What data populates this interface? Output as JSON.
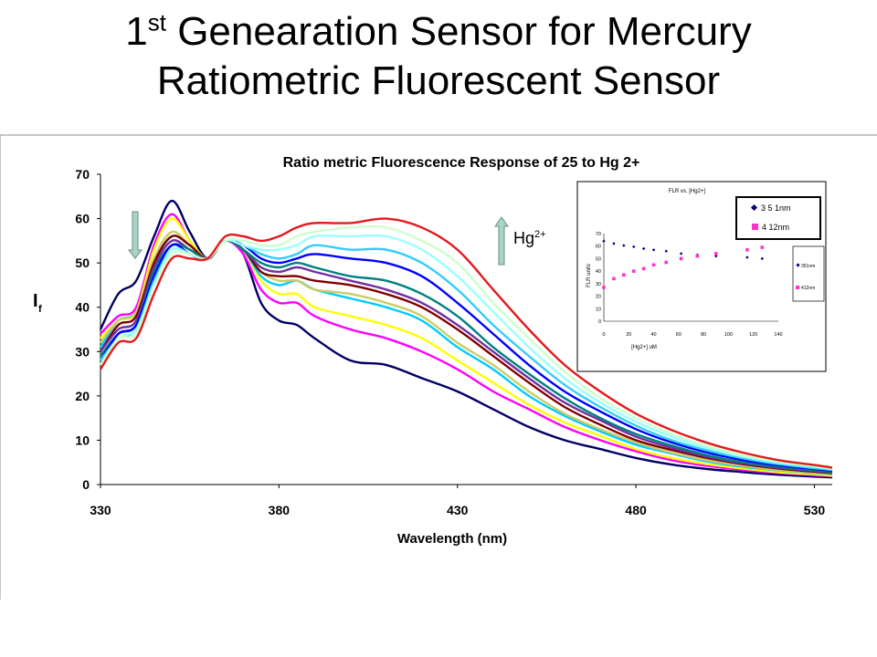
{
  "slide": {
    "title_prefix": "1",
    "title_sup": "st",
    "title_line1_rest": " Genearation Sensor for Mercury",
    "title_line2": "Ratiometric Fluorescent Sensor"
  },
  "arrows": {
    "hg_label": "Hg",
    "hg_charge": "2+",
    "color_fill": "#a7d7c4",
    "color_stroke": "#6b8c80"
  },
  "chart_data": [
    {
      "type": "line",
      "title": "Ratio metric Fluorescence Response of 25 to Hg 2+",
      "xlabel": "Wavelength (nm)",
      "ylabel": "If",
      "ylabel_main": "I",
      "ylabel_sub": "f",
      "xlim": [
        330,
        535
      ],
      "ylim": [
        0,
        70
      ],
      "xticks": [
        330,
        380,
        430,
        480,
        530
      ],
      "yticks": [
        0,
        10,
        20,
        30,
        40,
        50,
        60,
        70
      ],
      "grid": false,
      "legend": "none",
      "x": [
        330,
        335,
        340,
        345,
        350,
        355,
        360,
        365,
        370,
        375,
        380,
        385,
        390,
        400,
        410,
        420,
        430,
        440,
        450,
        460,
        470,
        480,
        490,
        500,
        510,
        520,
        530,
        535
      ],
      "series": [
        {
          "color": "#000066",
          "values": [
            35,
            43,
            46,
            56,
            64,
            57,
            51,
            55,
            52,
            41,
            37,
            36,
            33,
            28,
            27,
            24,
            21,
            17,
            13,
            10,
            8,
            6,
            4.5,
            3.5,
            2.8,
            2.2,
            1.8,
            1.6
          ]
        },
        {
          "color": "#ff00ff",
          "values": [
            34,
            38,
            40,
            54,
            61,
            55,
            51,
            55,
            52,
            44,
            41,
            41,
            38,
            35,
            33,
            30,
            26,
            21,
            17,
            13,
            10,
            7.5,
            5.5,
            4.2,
            3.3,
            2.6,
            2.1,
            1.9
          ]
        },
        {
          "color": "#ffff00",
          "values": [
            33,
            37,
            39,
            53,
            60,
            55,
            51,
            55,
            53,
            46,
            43,
            43,
            40,
            38,
            36,
            33,
            28,
            23,
            18,
            14,
            11,
            8,
            6,
            4.6,
            3.6,
            2.8,
            2.3,
            2.0
          ]
        },
        {
          "color": "#00ccff",
          "values": [
            31,
            37,
            39,
            50,
            56,
            54,
            51,
            55,
            53,
            47,
            45,
            46,
            44,
            42,
            40,
            37,
            31,
            26,
            20,
            15.5,
            12,
            9,
            7,
            5.2,
            4,
            3.2,
            2.6,
            2.3
          ]
        },
        {
          "color": "#cccc66",
          "values": [
            32,
            37,
            39,
            51,
            57,
            54,
            51,
            55,
            53,
            48,
            46,
            46,
            44,
            43,
            41,
            38,
            32,
            27,
            21,
            16,
            12.5,
            9.5,
            7.2,
            5.5,
            4.2,
            3.3,
            2.7,
            2.4
          ]
        },
        {
          "color": "#800000",
          "values": [
            30,
            36,
            38,
            50,
            56,
            54,
            51,
            55,
            53,
            48,
            47,
            47,
            46,
            45,
            43,
            40,
            35,
            29,
            23,
            17.5,
            13.5,
            10,
            7.8,
            6,
            4.6,
            3.6,
            2.9,
            2.6
          ]
        },
        {
          "color": "#7030a0",
          "values": [
            30,
            35,
            37,
            49,
            55,
            53,
            51,
            55,
            53,
            49,
            48,
            49,
            48,
            46,
            44,
            41,
            36,
            30,
            24,
            18.5,
            14.5,
            10.8,
            8.3,
            6.3,
            4.8,
            3.8,
            3.1,
            2.8
          ]
        },
        {
          "color": "#008080",
          "values": [
            29,
            34,
            36,
            48,
            54,
            53,
            51,
            55,
            53,
            50,
            49,
            50,
            49,
            47,
            46,
            43,
            38,
            31,
            25,
            19.5,
            15,
            11.4,
            8.8,
            6.6,
            5,
            4,
            3.2,
            2.9
          ]
        },
        {
          "color": "#0000ff",
          "values": [
            28,
            34,
            36,
            47,
            54,
            52,
            51,
            55,
            54,
            51,
            50,
            51,
            52,
            51,
            50,
            47,
            41,
            34,
            27,
            21,
            16.5,
            12.5,
            9.5,
            7.2,
            5.5,
            4.3,
            3.5,
            3.1
          ]
        },
        {
          "color": "#33ccff",
          "values": [
            28,
            33,
            35,
            46,
            53,
            52,
            51,
            55,
            54,
            52,
            51,
            52,
            54,
            53,
            53,
            50,
            44,
            36,
            29,
            22.5,
            17.5,
            13.3,
            10,
            7.7,
            5.9,
            4.6,
            3.7,
            3.3
          ]
        },
        {
          "color": "#99ffff",
          "values": [
            27,
            33,
            35,
            45,
            53,
            52,
            51,
            55,
            54,
            53,
            53,
            54,
            56,
            56,
            56,
            53,
            47,
            39,
            31,
            24,
            18.5,
            14.2,
            10.8,
            8.2,
            6.3,
            4.9,
            4,
            3.5
          ]
        },
        {
          "color": "#ccffcc",
          "values": [
            27,
            33,
            34,
            45,
            52,
            52,
            51,
            55,
            55,
            54,
            54,
            56,
            57,
            58,
            58,
            55,
            50,
            41,
            33,
            25.5,
            19.5,
            15,
            11.4,
            8.7,
            6.6,
            5.2,
            4.2,
            3.7
          ]
        },
        {
          "color": "#e31a1c",
          "values": [
            26,
            32,
            33,
            43,
            51,
            51,
            51,
            56,
            56,
            55,
            56,
            58,
            59,
            59,
            60,
            58,
            53,
            44,
            35,
            27,
            21,
            16,
            12.3,
            9.4,
            7.2,
            5.5,
            4.4,
            3.8
          ]
        }
      ]
    },
    {
      "type": "scatter",
      "title": "FLR vs. [Hg2+]",
      "xlabel": "[Hg2+] uM",
      "ylabel": "FLR units",
      "xlim": [
        0,
        140
      ],
      "ylim": [
        0,
        70
      ],
      "xticks": [
        0,
        20,
        40,
        60,
        80,
        100,
        120,
        140
      ],
      "yticks": [
        0,
        10,
        20,
        30,
        40,
        50,
        60,
        70
      ],
      "legend": "right",
      "legend_box": [
        {
          "label": "3 5 1nm",
          "color": "#000080",
          "marker": "diamond"
        },
        {
          "label": "4 12nm",
          "color": "#ff33cc",
          "marker": "square"
        }
      ],
      "series": [
        {
          "name": "351nm",
          "color": "#000080",
          "marker": "diamond",
          "x": [
            0,
            8,
            16,
            24,
            32,
            40,
            50,
            62,
            75,
            90,
            115,
            127
          ],
          "y": [
            64,
            62,
            60.5,
            59.5,
            58,
            57,
            56,
            54,
            53,
            52,
            51,
            50
          ]
        },
        {
          "name": "412nm",
          "color": "#ff33cc",
          "marker": "square",
          "x": [
            0,
            8,
            16,
            24,
            32,
            40,
            50,
            62,
            75,
            90,
            115,
            127
          ],
          "y": [
            27,
            34,
            37,
            40,
            42,
            45,
            47,
            50,
            52,
            54,
            57,
            59
          ]
        }
      ]
    }
  ]
}
